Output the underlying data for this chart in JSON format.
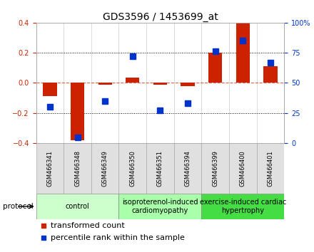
{
  "title": "GDS3596 / 1453699_at",
  "samples": [
    "GSM466341",
    "GSM466348",
    "GSM466349",
    "GSM466350",
    "GSM466351",
    "GSM466394",
    "GSM466399",
    "GSM466400",
    "GSM466401"
  ],
  "red_values": [
    -0.09,
    -0.38,
    -0.01,
    0.035,
    -0.01,
    -0.02,
    0.2,
    0.4,
    0.11
  ],
  "blue_percentiles": [
    30,
    5,
    35,
    72,
    27,
    33,
    76,
    85,
    67
  ],
  "ylim_left": [
    -0.4,
    0.4
  ],
  "ylim_right": [
    0,
    100
  ],
  "yticks_left": [
    -0.4,
    -0.2,
    0.0,
    0.2,
    0.4
  ],
  "yticks_right": [
    0,
    25,
    50,
    75,
    100
  ],
  "ytick_labels_right": [
    "0",
    "25",
    "50",
    "75",
    "100%"
  ],
  "hlines": [
    -0.2,
    0.0,
    0.2
  ],
  "red_color": "#CC2200",
  "blue_color": "#0033CC",
  "protocol_groups": [
    {
      "label": "control",
      "start": 0,
      "end": 3,
      "color": "#ccffcc"
    },
    {
      "label": "isoproterenol-induced\ncardiomyopathy",
      "start": 3,
      "end": 6,
      "color": "#aaffaa"
    },
    {
      "label": "exercise-induced cardiac\nhypertrophy",
      "start": 6,
      "end": 9,
      "color": "#44dd44"
    }
  ],
  "legend_items": [
    {
      "label": "transformed count",
      "color": "#CC2200"
    },
    {
      "label": "percentile rank within the sample",
      "color": "#0033CC"
    }
  ],
  "bar_width": 0.5,
  "marker_size": 6,
  "title_fontsize": 10,
  "tick_fontsize": 7,
  "sample_fontsize": 6,
  "protocol_fontsize": 7,
  "legend_fontsize": 8
}
